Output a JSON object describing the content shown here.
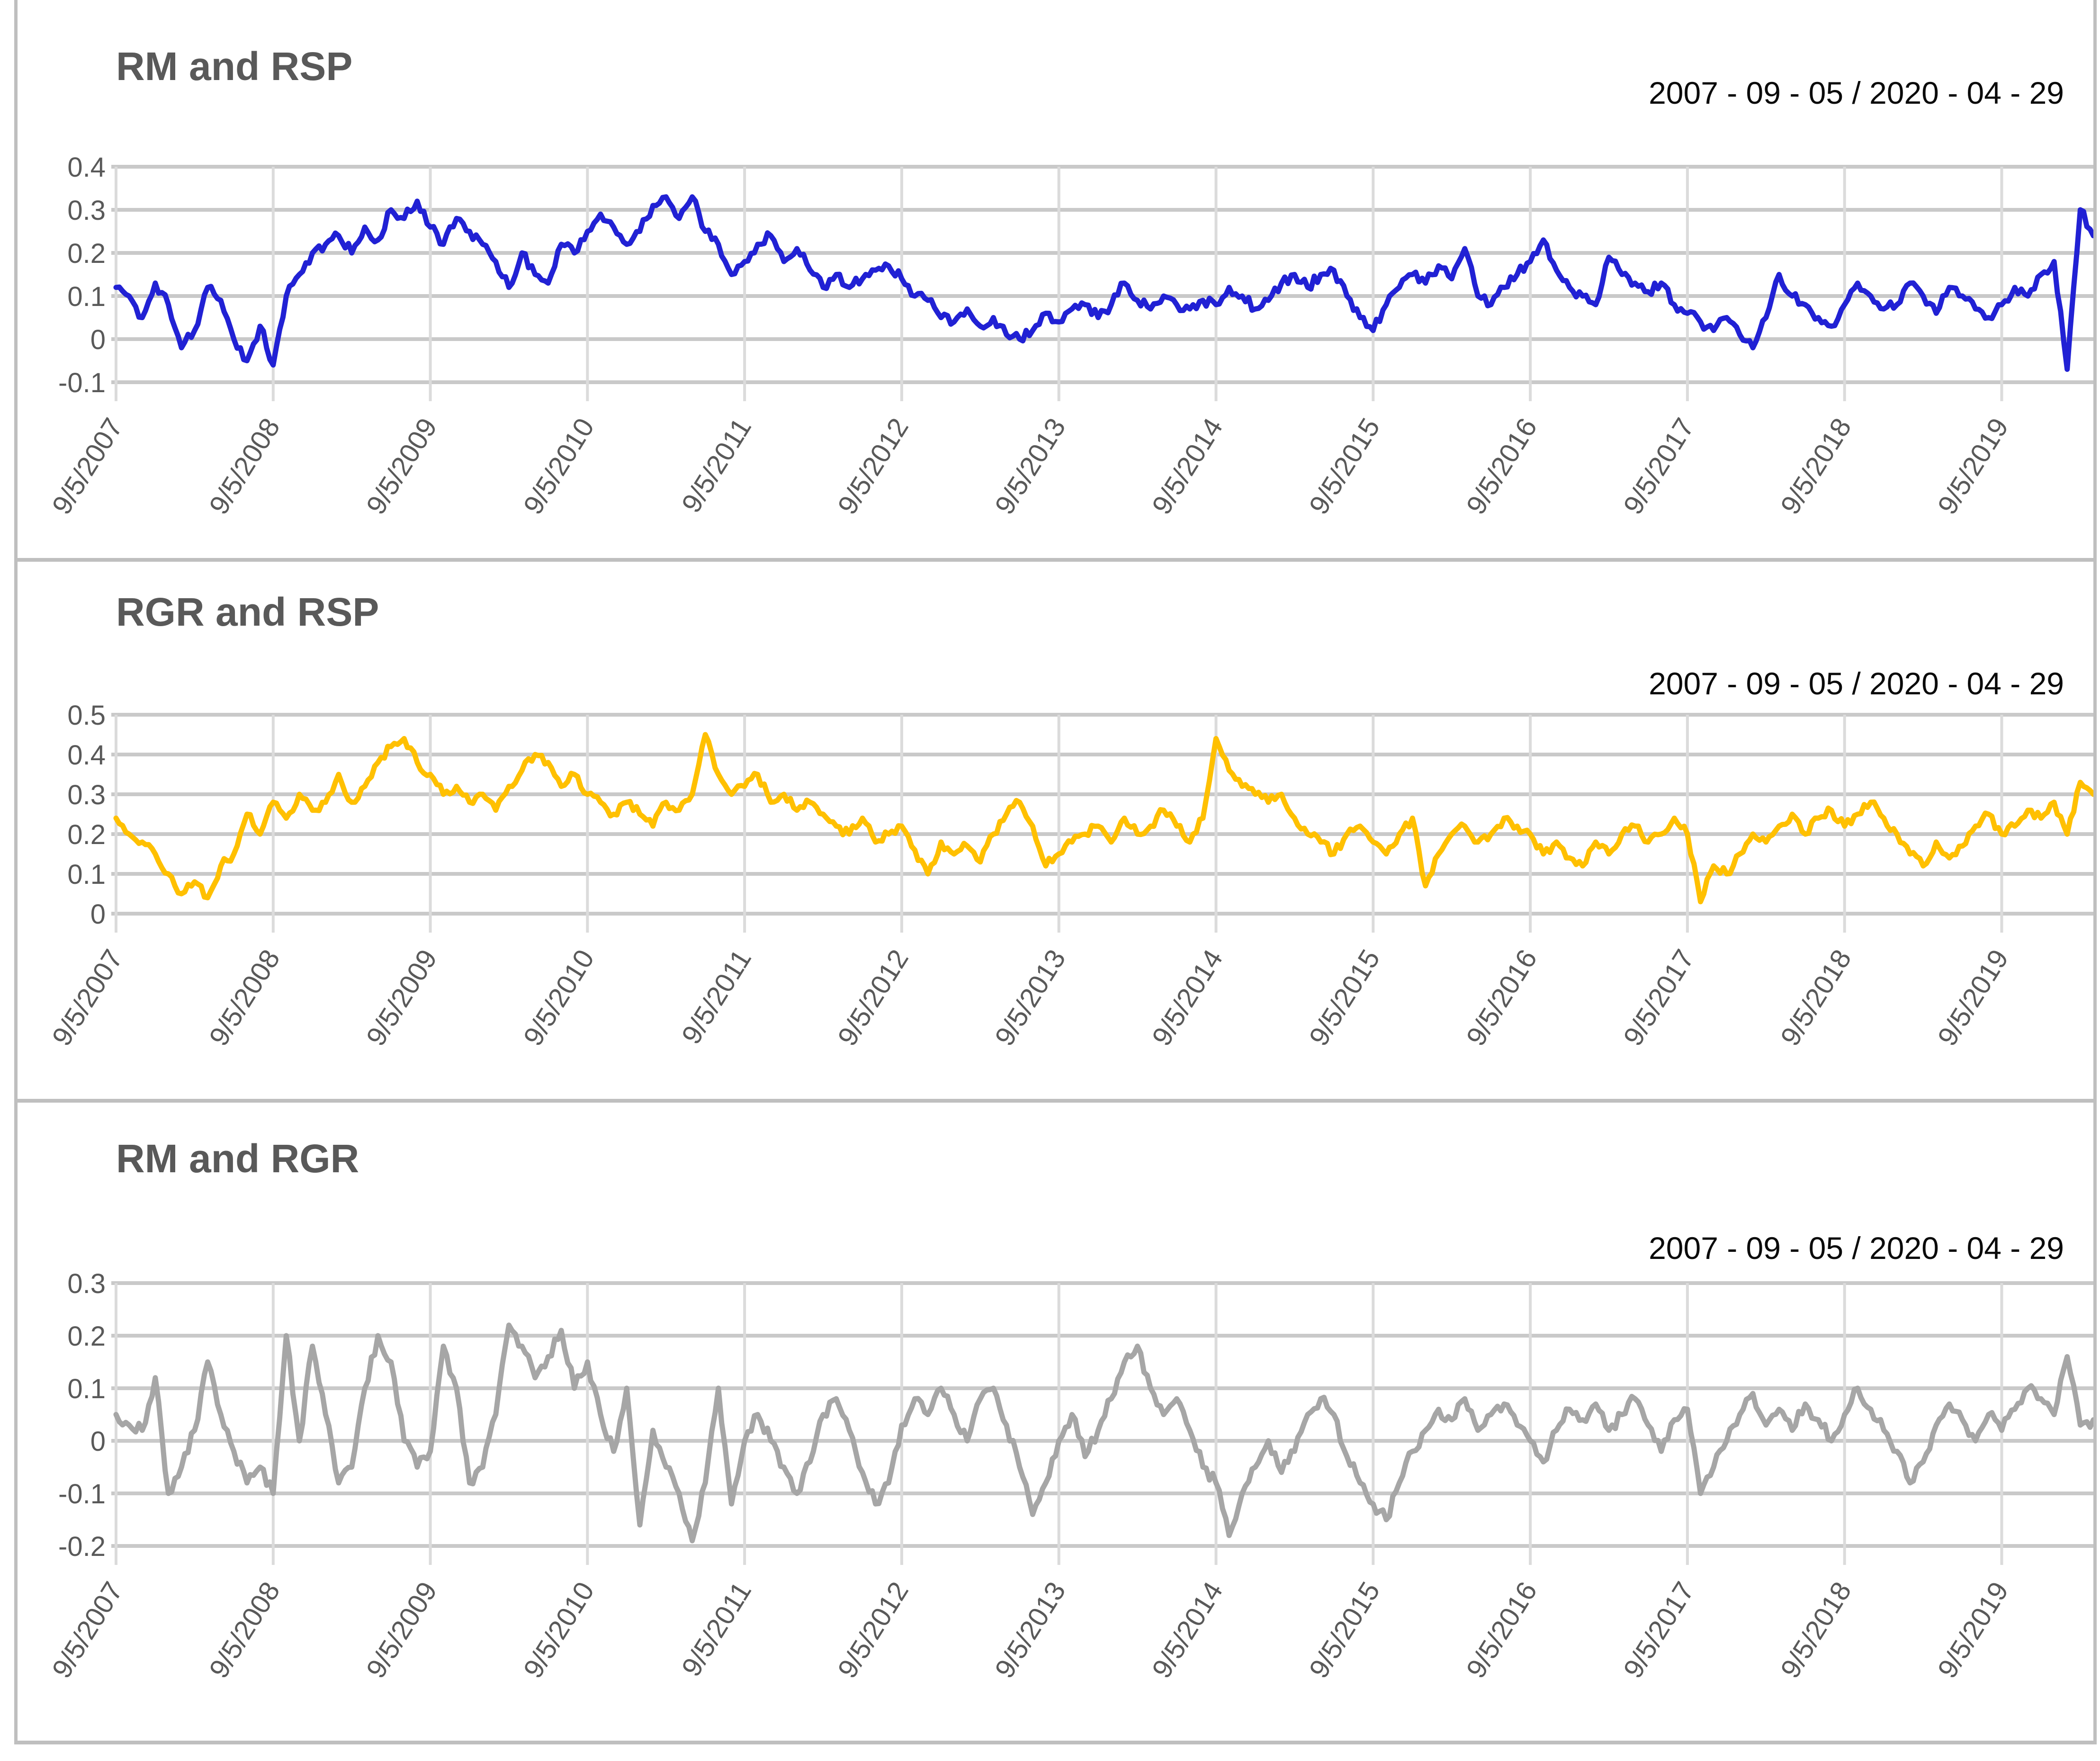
{
  "page": {
    "background": "#FFFFFF",
    "panel_border_color": "#BFBFBF"
  },
  "styles": {
    "title_color": "#595959",
    "axis_label_color": "#595959",
    "date_color": "#0A0A0A",
    "h_gridline_color": "#C9C9C9",
    "v_gridline_color": "#DBDBDB",
    "line_colors": {
      "rm_rsp": "#2121D4",
      "rgr_rsp": "#FFC000",
      "rm_rgr": "#A6A6A6"
    }
  },
  "charts": [
    {
      "title": "RM and RSP",
      "date_range": "2007 - 09 - 05 / 2020 - 04 - 29",
      "line_color": "#2121D4"
    },
    {
      "title": "RGR and RSP",
      "date_range": "2007 - 09 - 05 / 2020 - 04 - 29",
      "line_color": "#FFC000"
    },
    {
      "title": "RM and RGR",
      "date_range": "2007 - 09 - 05 / 2020 - 04 - 29",
      "line_color": "#A6A6A6"
    }
  ],
  "chart_data": [
    {
      "type": "line",
      "title": "RM and RSP",
      "legend": "none",
      "grid": true,
      "line_color": "#2121D4",
      "x_tick_labels": [
        "9/5/2007",
        "9/5/2008",
        "9/5/2009",
        "9/5/2010",
        "9/5/2011",
        "9/5/2012",
        "9/5/2013",
        "9/5/2014",
        "9/5/2015",
        "9/5/2016",
        "9/5/2017",
        "9/5/2018",
        "9/5/2019"
      ],
      "x_start_label": "9/5/2007",
      "x_end_label": "4/29/2020",
      "x_unit": "monthly samples, index = months since 2007-09",
      "y_ticks": [
        0.4,
        0.3,
        0.2,
        0.1,
        0,
        -0.1
      ],
      "ylim": [
        -0.1,
        0.4
      ],
      "values": [
        0.12,
        0.1,
        0.05,
        0.13,
        0.08,
        -0.02,
        0.02,
        0.12,
        0.09,
        0.0,
        -0.05,
        0.03,
        -0.06,
        0.1,
        0.15,
        0.2,
        0.22,
        0.24,
        0.2,
        0.26,
        0.23,
        0.3,
        0.28,
        0.32,
        0.26,
        0.22,
        0.28,
        0.25,
        0.22,
        0.18,
        0.12,
        0.2,
        0.15,
        0.13,
        0.22,
        0.2,
        0.25,
        0.29,
        0.26,
        0.22,
        0.25,
        0.31,
        0.33,
        0.28,
        0.33,
        0.25,
        0.22,
        0.15,
        0.18,
        0.22,
        0.24,
        0.18,
        0.21,
        0.16,
        0.12,
        0.15,
        0.12,
        0.14,
        0.16,
        0.17,
        0.14,
        0.1,
        0.09,
        0.05,
        0.04,
        0.07,
        0.03,
        0.05,
        0.01,
        0.0,
        0.02,
        0.06,
        0.04,
        0.07,
        0.08,
        0.05,
        0.08,
        0.13,
        0.09,
        0.07,
        0.1,
        0.08,
        0.07,
        0.09,
        0.08,
        0.12,
        0.1,
        0.07,
        0.09,
        0.13,
        0.15,
        0.12,
        0.15,
        0.16,
        0.1,
        0.05,
        0.02,
        0.08,
        0.12,
        0.15,
        0.13,
        0.17,
        0.14,
        0.21,
        0.1,
        0.08,
        0.12,
        0.15,
        0.18,
        0.23,
        0.16,
        0.12,
        0.1,
        0.08,
        0.19,
        0.15,
        0.13,
        0.11,
        0.13,
        0.08,
        0.06,
        0.04,
        0.02,
        0.05,
        0.01,
        -0.02,
        0.05,
        0.15,
        0.1,
        0.08,
        0.05,
        0.03,
        0.08,
        0.13,
        0.1,
        0.07,
        0.08,
        0.13,
        0.1,
        0.06,
        0.12,
        0.1,
        0.07,
        0.05,
        0.08,
        0.12,
        0.1,
        0.15,
        0.18,
        -0.07,
        0.3,
        0.24
      ]
    },
    {
      "type": "line",
      "title": "RGR and RSP",
      "legend": "none",
      "grid": true,
      "line_color": "#FFC000",
      "x_tick_labels": [
        "9/5/2007",
        "9/5/2008",
        "9/5/2009",
        "9/5/2010",
        "9/5/2011",
        "9/5/2012",
        "9/5/2013",
        "9/5/2014",
        "9/5/2015",
        "9/5/2016",
        "9/5/2017",
        "9/5/2018",
        "9/5/2019"
      ],
      "x_start_label": "9/5/2007",
      "x_end_label": "4/29/2020",
      "x_unit": "monthly samples, index = months since 2007-09",
      "y_ticks": [
        0.5,
        0.4,
        0.3,
        0.2,
        0.1,
        0
      ],
      "ylim": [
        0,
        0.5
      ],
      "values": [
        0.24,
        0.2,
        0.18,
        0.15,
        0.1,
        0.05,
        0.08,
        0.04,
        0.12,
        0.15,
        0.25,
        0.2,
        0.28,
        0.24,
        0.3,
        0.26,
        0.28,
        0.35,
        0.28,
        0.32,
        0.38,
        0.42,
        0.44,
        0.38,
        0.35,
        0.3,
        0.32,
        0.28,
        0.3,
        0.26,
        0.32,
        0.36,
        0.4,
        0.38,
        0.32,
        0.35,
        0.3,
        0.28,
        0.25,
        0.28,
        0.25,
        0.22,
        0.28,
        0.26,
        0.3,
        0.45,
        0.35,
        0.3,
        0.32,
        0.35,
        0.28,
        0.3,
        0.26,
        0.28,
        0.25,
        0.22,
        0.2,
        0.24,
        0.18,
        0.2,
        0.22,
        0.16,
        0.1,
        0.18,
        0.15,
        0.17,
        0.13,
        0.2,
        0.25,
        0.28,
        0.22,
        0.12,
        0.15,
        0.18,
        0.2,
        0.22,
        0.18,
        0.24,
        0.2,
        0.22,
        0.26,
        0.22,
        0.18,
        0.24,
        0.44,
        0.36,
        0.32,
        0.3,
        0.28,
        0.3,
        0.24,
        0.2,
        0.18,
        0.15,
        0.2,
        0.22,
        0.18,
        0.15,
        0.2,
        0.24,
        0.07,
        0.15,
        0.2,
        0.22,
        0.18,
        0.2,
        0.24,
        0.22,
        0.2,
        0.15,
        0.18,
        0.14,
        0.12,
        0.18,
        0.15,
        0.2,
        0.22,
        0.18,
        0.2,
        0.24,
        0.2,
        0.03,
        0.12,
        0.1,
        0.15,
        0.2,
        0.18,
        0.22,
        0.25,
        0.2,
        0.24,
        0.26,
        0.22,
        0.25,
        0.28,
        0.24,
        0.2,
        0.15,
        0.12,
        0.18,
        0.14,
        0.17,
        0.22,
        0.25,
        0.2,
        0.22,
        0.26,
        0.24,
        0.28,
        0.2,
        0.33,
        0.3
      ]
    },
    {
      "type": "line",
      "title": "RM and RGR",
      "legend": "none",
      "grid": true,
      "line_color": "#A6A6A6",
      "x_tick_labels": [
        "9/5/2007",
        "9/5/2008",
        "9/5/2009",
        "9/5/2010",
        "9/5/2011",
        "9/5/2012",
        "9/5/2013",
        "9/5/2014",
        "9/5/2015",
        "9/5/2016",
        "9/5/2017",
        "9/5/2018",
        "9/5/2019"
      ],
      "x_start_label": "9/5/2007",
      "x_end_label": "4/29/2020",
      "x_unit": "monthly samples, index = months since 2007-09",
      "y_ticks": [
        0.3,
        0.2,
        0.1,
        0,
        -0.1,
        -0.2
      ],
      "ylim": [
        -0.2,
        0.3
      ],
      "values": [
        0.05,
        0.03,
        0.02,
        0.12,
        -0.1,
        -0.05,
        0.02,
        0.15,
        0.05,
        -0.02,
        -0.08,
        -0.05,
        -0.1,
        0.2,
        0.0,
        0.18,
        0.05,
        -0.08,
        -0.05,
        0.1,
        0.2,
        0.15,
        0.0,
        -0.05,
        -0.02,
        0.18,
        0.1,
        -0.08,
        -0.05,
        0.05,
        0.22,
        0.18,
        0.12,
        0.16,
        0.21,
        0.1,
        0.15,
        0.05,
        -0.02,
        0.1,
        -0.16,
        0.02,
        -0.05,
        -0.1,
        -0.19,
        -0.08,
        0.1,
        -0.12,
        0.0,
        0.05,
        0.0,
        -0.05,
        -0.1,
        -0.04,
        0.05,
        0.08,
        0.02,
        -0.06,
        -0.12,
        -0.08,
        0.03,
        0.08,
        0.05,
        0.1,
        0.05,
        0.0,
        0.08,
        0.1,
        0.03,
        -0.05,
        -0.14,
        -0.08,
        0.0,
        0.05,
        -0.03,
        0.02,
        0.08,
        0.15,
        0.18,
        0.1,
        0.05,
        0.08,
        0.02,
        -0.05,
        -0.08,
        -0.18,
        -0.1,
        -0.05,
        0.0,
        -0.06,
        -0.02,
        0.05,
        0.08,
        0.05,
        -0.03,
        -0.08,
        -0.12,
        -0.15,
        -0.08,
        -0.02,
        0.02,
        0.06,
        0.04,
        0.08,
        0.02,
        0.05,
        0.07,
        0.03,
        0.0,
        -0.04,
        0.02,
        0.06,
        0.04,
        0.07,
        0.02,
        0.05,
        0.08,
        0.03,
        -0.02,
        0.04,
        0.06,
        -0.1,
        -0.05,
        0.0,
        0.05,
        0.09,
        0.03,
        0.06,
        0.02,
        0.07,
        0.04,
        0.0,
        0.05,
        0.1,
        0.06,
        0.02,
        -0.02,
        -0.08,
        -0.04,
        0.03,
        0.07,
        0.04,
        0.0,
        0.05,
        0.02,
        0.06,
        0.1,
        0.08,
        0.05,
        0.16,
        0.03,
        0.04
      ]
    }
  ]
}
